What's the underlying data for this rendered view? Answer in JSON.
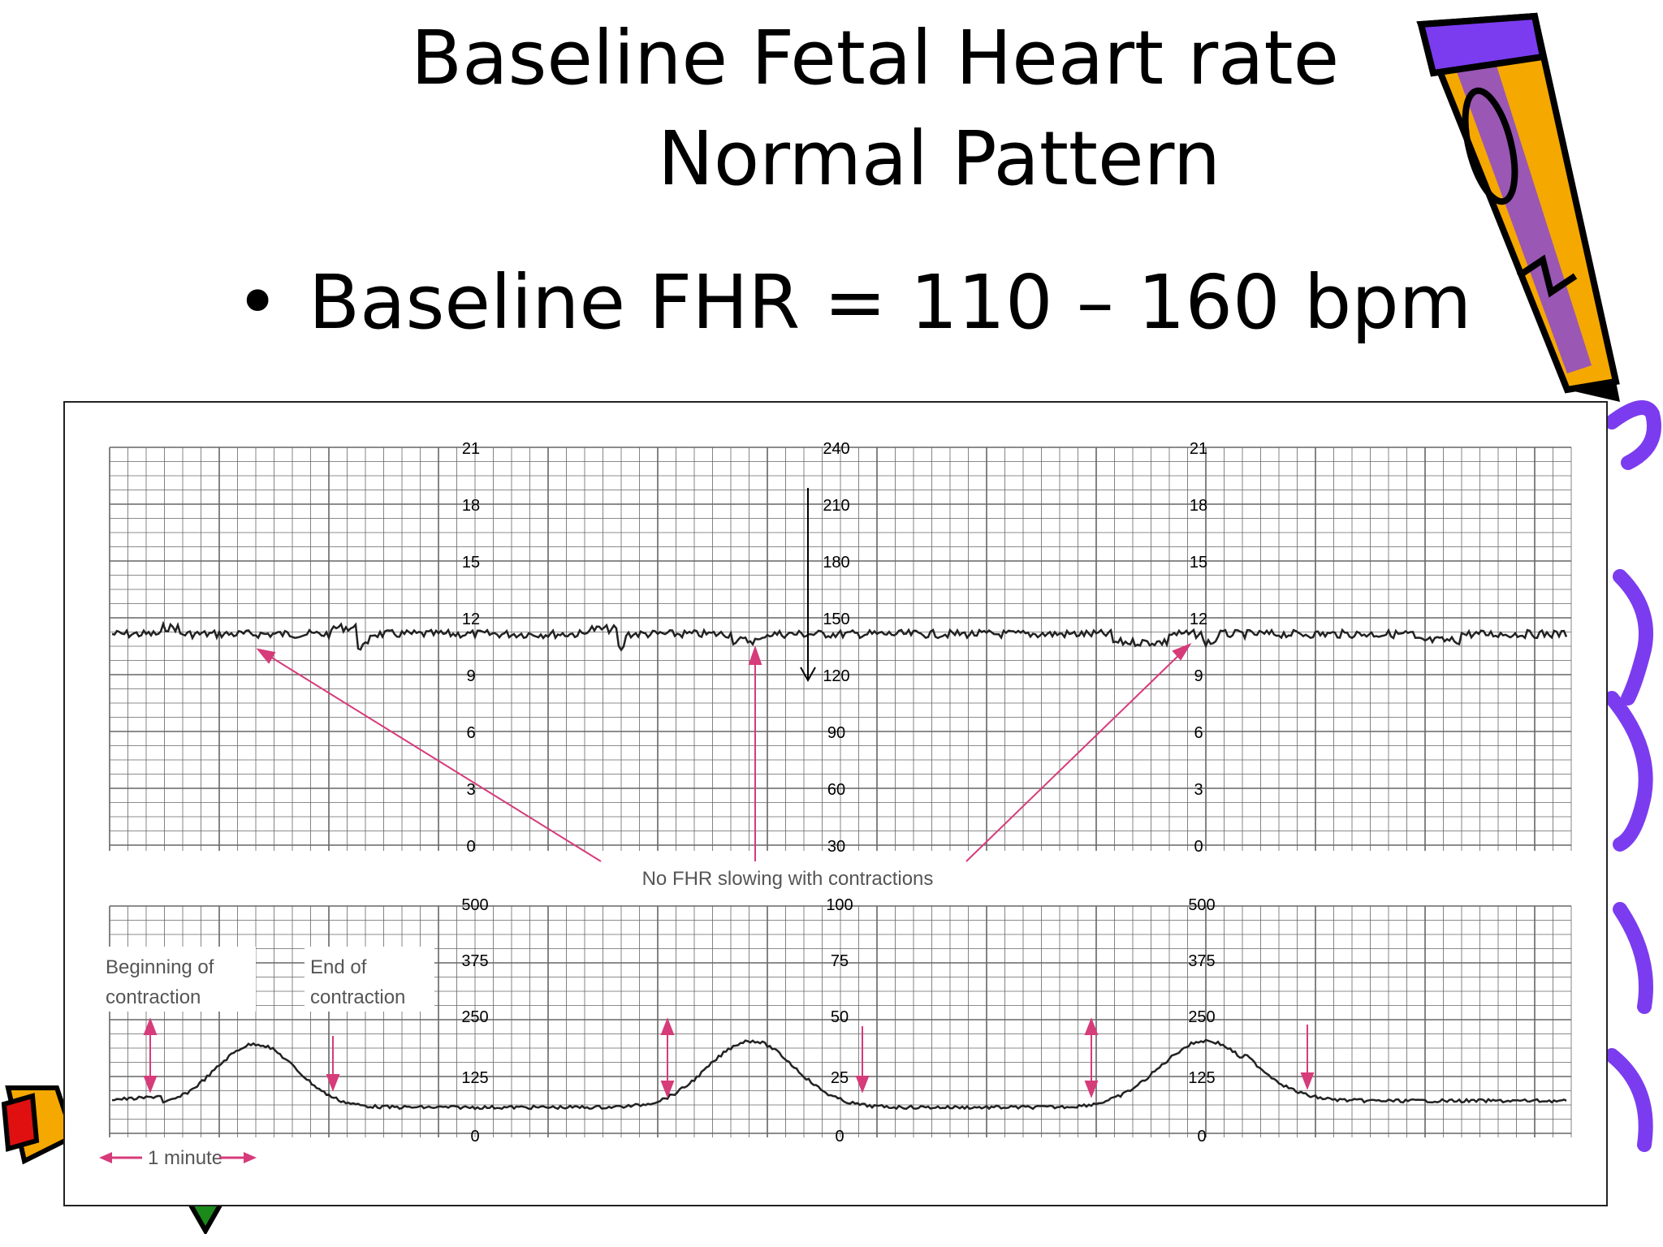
{
  "slide": {
    "title_line1": "Baseline Fetal Heart rate",
    "title_line2": "Normal Pattern",
    "bullet": "Baseline FHR = 110 – 160 bpm"
  },
  "strip": {
    "top_panel": {
      "left_scale": [
        "21",
        "18",
        "15",
        "12",
        "9",
        "6",
        "3",
        "0"
      ],
      "center_scale": [
        "240",
        "210",
        "180",
        "150",
        "120",
        "90",
        "60",
        "30"
      ],
      "right_scale": [
        "21",
        "18",
        "15",
        "12",
        "9",
        "6",
        "3",
        "0"
      ]
    },
    "bottom_panel": {
      "left_scale": [
        "500",
        "375",
        "250",
        "125",
        "0"
      ],
      "center_scale": [
        "100",
        "75",
        "50",
        "25",
        "0"
      ],
      "right_scale": [
        "500",
        "375",
        "250",
        "125",
        "0"
      ]
    },
    "annotation_no_slowing": "No FHR slowing with contractions",
    "annotation_begin": "Beginning of contraction",
    "annotation_begin_line1": "Beginning of",
    "annotation_begin_line2": "contraction",
    "annotation_end_line1": "End of",
    "annotation_end_line2": "contraction",
    "minute_label": "1 minute",
    "colors": {
      "annotation": "#d63b7a",
      "trace": "#222222",
      "grid": "#555555"
    }
  },
  "decor": {
    "pencil_icon": "pencil-icon",
    "colors": {
      "pencil_body": "#f5a800",
      "pencil_edge": "#7b3cf0",
      "pencil_red": "#e01010"
    }
  }
}
